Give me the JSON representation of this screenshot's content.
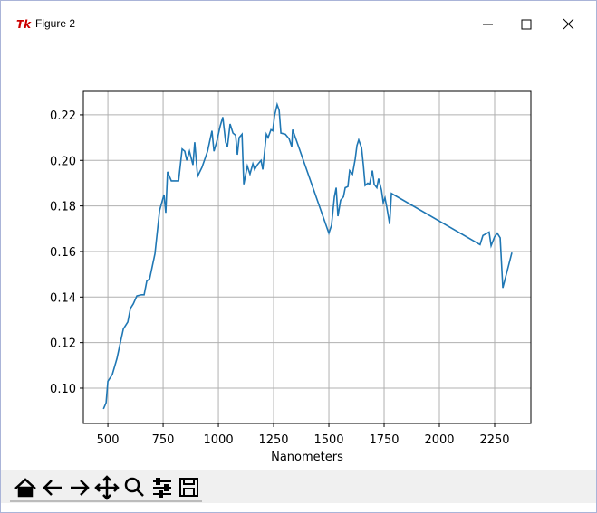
{
  "window": {
    "title": "Figure 2"
  },
  "chart_data": {
    "type": "line",
    "xlabel": "Nanometers",
    "color": "#1f77b4",
    "grid": true,
    "xlim": [
      389,
      2414
    ],
    "ylim": [
      0.0845,
      0.2303
    ],
    "xticks": [
      500,
      750,
      1000,
      1250,
      1500,
      1750,
      2000,
      2250
    ],
    "yticks": [
      {
        "value": 0.1,
        "label": "0.10"
      },
      0.12,
      0.14,
      0.16,
      0.18,
      {
        "value": 0.2,
        "label": "0.20"
      },
      0.22
    ],
    "x": [
      480,
      492,
      500,
      520,
      541,
      561,
      570,
      590,
      602,
      615,
      631,
      652,
      664,
      676,
      689,
      713,
      734,
      754,
      762,
      770,
      787,
      807,
      820,
      836,
      848,
      857,
      869,
      885,
      893,
      906,
      926,
      951,
      971,
      980,
      992,
      1008,
      1020,
      1033,
      1041,
      1053,
      1066,
      1078,
      1086,
      1094,
      1107,
      1115,
      1131,
      1143,
      1156,
      1164,
      1176,
      1193,
      1201,
      1217,
      1225,
      1238,
      1246,
      1254,
      1266,
      1275,
      1283,
      1303,
      1320,
      1332,
      1336,
      1500,
      1512,
      1525,
      1533,
      1541,
      1553,
      1566,
      1574,
      1586,
      1594,
      1607,
      1619,
      1627,
      1635,
      1648,
      1656,
      1664,
      1676,
      1684,
      1697,
      1705,
      1717,
      1725,
      1738,
      1746,
      1754,
      1762,
      1775,
      1783,
      2184,
      2197,
      2225,
      2234,
      2250,
      2262,
      2275,
      2287,
      2328
    ],
    "values": [
      0.0909,
      0.0936,
      0.103,
      0.106,
      0.113,
      0.122,
      0.126,
      0.129,
      0.135,
      0.137,
      0.1405,
      0.141,
      0.141,
      0.147,
      0.148,
      0.159,
      0.178,
      0.185,
      0.177,
      0.195,
      0.191,
      0.191,
      0.191,
      0.205,
      0.204,
      0.2,
      0.204,
      0.198,
      0.208,
      0.193,
      0.197,
      0.204,
      0.213,
      0.204,
      0.208,
      0.215,
      0.219,
      0.208,
      0.206,
      0.216,
      0.212,
      0.211,
      0.2025,
      0.21,
      0.2115,
      0.1895,
      0.1975,
      0.194,
      0.1985,
      0.196,
      0.198,
      0.2,
      0.196,
      0.2115,
      0.21,
      0.2135,
      0.213,
      0.2195,
      0.2245,
      0.222,
      0.212,
      0.2115,
      0.2095,
      0.206,
      0.2135,
      0.168,
      0.1715,
      0.184,
      0.188,
      0.1755,
      0.1825,
      0.184,
      0.188,
      0.1885,
      0.1955,
      0.194,
      0.2005,
      0.2065,
      0.209,
      0.2055,
      0.198,
      0.189,
      0.19,
      0.1895,
      0.1955,
      0.1895,
      0.188,
      0.192,
      0.187,
      0.1815,
      0.1835,
      0.1795,
      0.172,
      0.1855,
      0.163,
      0.167,
      0.1685,
      0.1625,
      0.1665,
      0.168,
      0.166,
      0.144,
      0.1595
    ]
  }
}
